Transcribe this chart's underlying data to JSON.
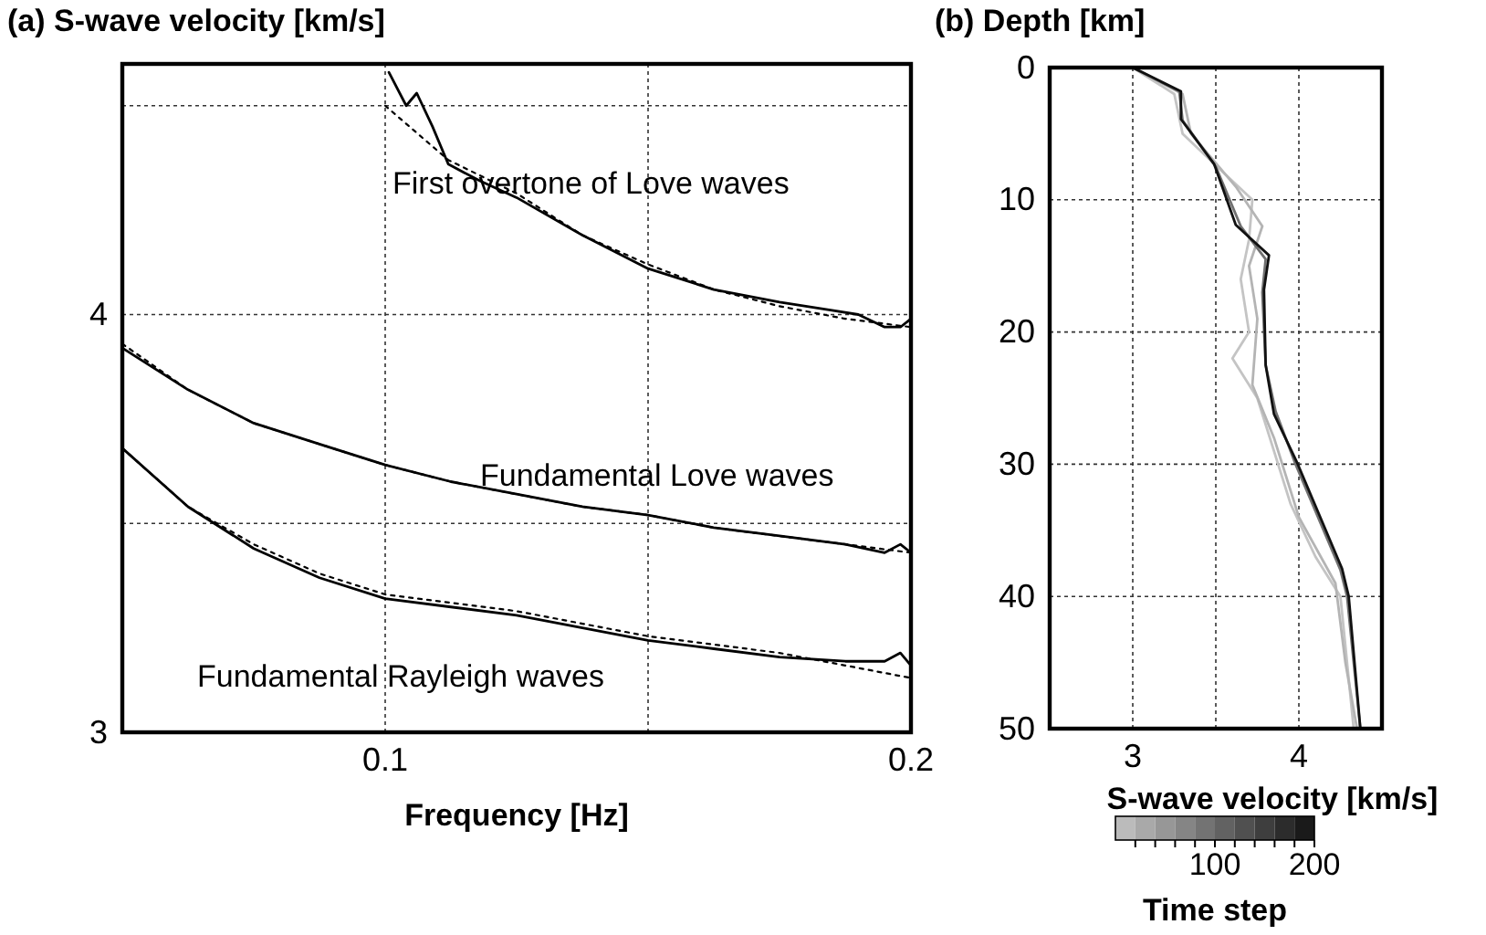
{
  "chart_data": [
    {
      "type": "line",
      "ylabel": "(a) S-wave velocity [km/s]",
      "xlabel": "Frequency [Hz]",
      "xlim": [
        0.05,
        0.2
      ],
      "xticks": [
        0.1,
        {
          "value": 0.15,
          "label": null
        },
        0.2
      ],
      "ylim": [
        3,
        4.6
      ],
      "yticks": [
        3,
        {
          "value": 3.5,
          "label": null
        },
        4,
        {
          "value": 4.5,
          "label": null
        }
      ],
      "grid": true,
      "line_style": "solid",
      "series": [
        {
          "color": "#000000",
          "x": [
            0.05,
            0.0625,
            0.075,
            0.0875,
            0.1,
            0.1125,
            0.125,
            0.1375,
            0.15,
            0.1625,
            0.175,
            0.1875,
            0.195,
            0.198,
            0.2
          ],
          "values": [
            3.92,
            3.82,
            3.74,
            3.69,
            3.64,
            3.6,
            3.57,
            3.54,
            3.52,
            3.49,
            3.47,
            3.45,
            3.43,
            3.45,
            3.43
          ]
        },
        {
          "color": "#000000",
          "line_style": "dotted",
          "x": [
            0.05,
            0.0625,
            0.075,
            0.0875,
            0.1,
            0.1125,
            0.125,
            0.1375,
            0.15,
            0.1625,
            0.175,
            0.1875,
            0.2
          ],
          "values": [
            3.93,
            3.82,
            3.74,
            3.69,
            3.64,
            3.6,
            3.57,
            3.54,
            3.52,
            3.49,
            3.47,
            3.45,
            3.43
          ]
        },
        {
          "color": "#000000",
          "x": [
            0.05,
            0.0625,
            0.075,
            0.0875,
            0.1,
            0.1125,
            0.125,
            0.1375,
            0.15,
            0.1625,
            0.175,
            0.1875,
            0.195,
            0.198,
            0.2
          ],
          "values": [
            3.68,
            3.54,
            3.44,
            3.37,
            3.32,
            3.3,
            3.28,
            3.25,
            3.22,
            3.2,
            3.18,
            3.17,
            3.17,
            3.19,
            3.16
          ]
        },
        {
          "color": "#000000",
          "line_style": "dotted",
          "x": [
            0.05,
            0.0625,
            0.075,
            0.0875,
            0.1,
            0.1125,
            0.125,
            0.1375,
            0.15,
            0.1625,
            0.175,
            0.1875,
            0.2
          ],
          "values": [
            3.68,
            3.54,
            3.45,
            3.38,
            3.33,
            3.31,
            3.29,
            3.26,
            3.23,
            3.21,
            3.19,
            3.16,
            3.13
          ]
        },
        {
          "color": "#000000",
          "x": [
            0.1007,
            0.104,
            0.106,
            0.109,
            0.112,
            0.118,
            0.125,
            0.1375,
            0.15,
            0.1625,
            0.175,
            0.185,
            0.19,
            0.195,
            0.198,
            0.2
          ],
          "values": [
            4.58,
            4.5,
            4.53,
            4.45,
            4.36,
            4.32,
            4.28,
            4.19,
            4.11,
            4.06,
            4.03,
            4.01,
            4,
            3.97,
            3.97,
            3.99
          ]
        },
        {
          "color": "#000000",
          "line_style": "dotted",
          "x": [
            0.1,
            0.112,
            0.125,
            0.1375,
            0.15,
            0.1625,
            0.175,
            0.1875,
            0.2
          ],
          "values": [
            4.5,
            4.37,
            4.29,
            4.19,
            4.12,
            4.06,
            4.02,
            3.99,
            3.97
          ]
        }
      ],
      "annotations": [
        "First overtone of Love waves",
        "Fundamental Love waves",
        "Fundamental Rayleigh waves"
      ]
    },
    {
      "type": "line",
      "ylabel": "(b) Depth [km]",
      "xlabel": "S-wave velocity [km/s]",
      "clabel": "Time step",
      "xlim": [
        2.5,
        4.5
      ],
      "xticks": [
        3,
        {
          "value": 3.5,
          "label": null
        },
        4
      ],
      "ylim": [
        50,
        0
      ],
      "yticks": [
        0,
        10,
        20,
        30,
        40,
        50
      ],
      "clim": [
        0,
        200
      ],
      "cticks": [
        {
          "value": 20,
          "label": null
        },
        {
          "value": 40,
          "label": null
        },
        {
          "value": 60,
          "label": null
        },
        {
          "value": 80,
          "label": null
        },
        100,
        {
          "value": 120,
          "label": null
        },
        {
          "value": 140,
          "label": null
        },
        {
          "value": 160,
          "label": null
        },
        {
          "value": 180,
          "label": null
        },
        200
      ],
      "grid": true,
      "series": [
        {
          "color": "#c4c4c4",
          "x": [
            3,
            3.25,
            3.3,
            3.55,
            3.72,
            3.7,
            3.65,
            3.7,
            3.6,
            3.75,
            3.85,
            3.95,
            4.1,
            4.25,
            4.33
          ],
          "values": [
            0,
            2,
            5,
            8,
            10,
            13,
            16,
            20,
            22,
            25,
            29,
            33,
            37,
            40,
            50
          ]
        },
        {
          "color": "#b4b4b4",
          "x": [
            3,
            3.3,
            3.35,
            3.62,
            3.78,
            3.7,
            3.75,
            3.72,
            3.85,
            4,
            4.22,
            4.28,
            4.35
          ],
          "values": [
            0,
            2,
            5,
            9,
            12,
            15,
            19,
            24,
            28,
            34,
            39,
            45,
            50
          ]
        },
        {
          "color": "#707070",
          "x": [
            3,
            3.28,
            3.3,
            3.5,
            3.65,
            3.8,
            3.78,
            3.8,
            3.86,
            3.98,
            4.25,
            4.29,
            4.37
          ],
          "values": [
            0,
            1.8,
            4,
            7.5,
            12,
            14.5,
            17,
            22.5,
            26,
            30,
            38,
            40,
            50
          ]
        },
        {
          "color": "#111111",
          "x": [
            3,
            3.29,
            3.29,
            3.49,
            3.62,
            3.82,
            3.79,
            3.8,
            3.85,
            3.99,
            4.26,
            4.3,
            4.37
          ],
          "values": [
            0,
            1.8,
            3.9,
            7.3,
            11.9,
            14.2,
            16.8,
            22.5,
            26.2,
            29.9,
            37.9,
            40,
            50
          ]
        }
      ]
    }
  ]
}
